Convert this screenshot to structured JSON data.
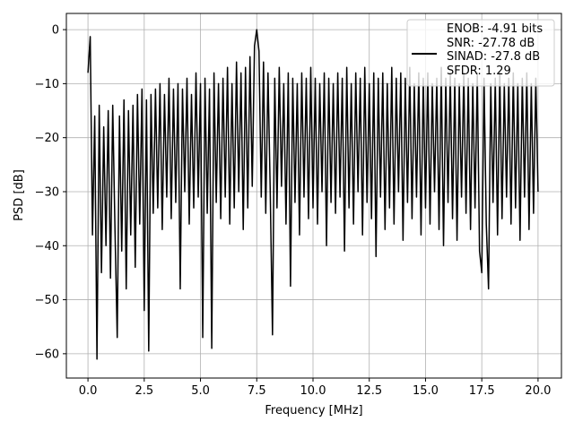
{
  "chart_data": {
    "type": "line",
    "xlabel": "Frequency [MHz]",
    "ylabel": "PSD [dB]",
    "xlim": [
      -0.96,
      21.04
    ],
    "ylim": [
      -64.5,
      3.0
    ],
    "xticks": [
      {
        "value": 0,
        "label": "0.0"
      },
      {
        "value": 2.5,
        "label": "2.5"
      },
      {
        "value": 5,
        "label": "5.0"
      },
      {
        "value": 7.5,
        "label": "7.5"
      },
      {
        "value": 10,
        "label": "10.0"
      },
      {
        "value": 12.5,
        "label": "12.5"
      },
      {
        "value": 15,
        "label": "15.0"
      },
      {
        "value": 17.5,
        "label": "17.5"
      },
      {
        "value": 20,
        "label": "20.0"
      }
    ],
    "yticks": [
      {
        "value": -60,
        "label": "−60"
      },
      {
        "value": -50,
        "label": "−50"
      },
      {
        "value": -40,
        "label": "−40"
      },
      {
        "value": -30,
        "label": "−30"
      },
      {
        "value": -20,
        "label": "−20"
      },
      {
        "value": -10,
        "label": "−10"
      },
      0
    ],
    "grid": true,
    "legend": "upper right",
    "x": [
      0,
      0.1,
      0.2,
      0.3,
      0.4,
      0.5,
      0.6,
      0.7,
      0.8,
      0.9,
      1,
      1.1,
      1.2,
      1.3,
      1.4,
      1.5,
      1.6,
      1.7,
      1.8,
      1.9,
      2,
      2.1,
      2.2,
      2.3,
      2.4,
      2.5,
      2.6,
      2.7,
      2.8,
      2.9,
      3,
      3.1,
      3.2,
      3.3,
      3.4,
      3.5,
      3.6,
      3.7,
      3.8,
      3.9,
      4,
      4.1,
      4.2,
      4.3,
      4.4,
      4.5,
      4.6,
      4.7,
      4.8,
      4.9,
      5,
      5.1,
      5.2,
      5.3,
      5.4,
      5.5,
      5.6,
      5.7,
      5.8,
      5.9,
      6,
      6.1,
      6.2,
      6.3,
      6.4,
      6.5,
      6.6,
      6.7,
      6.8,
      6.9,
      7,
      7.1,
      7.2,
      7.3,
      7.4,
      7.5,
      7.6,
      7.7,
      7.8,
      7.9,
      8,
      8.1,
      8.2,
      8.3,
      8.4,
      8.5,
      8.6,
      8.7,
      8.8,
      8.9,
      9,
      9.1,
      9.2,
      9.3,
      9.4,
      9.5,
      9.6,
      9.7,
      9.8,
      9.9,
      10,
      10.1,
      10.2,
      10.3,
      10.4,
      10.5,
      10.6,
      10.7,
      10.8,
      10.9,
      11,
      11.1,
      11.2,
      11.3,
      11.4,
      11.5,
      11.6,
      11.7,
      11.8,
      11.9,
      12,
      12.1,
      12.2,
      12.3,
      12.4,
      12.5,
      12.6,
      12.7,
      12.8,
      12.9,
      13,
      13.1,
      13.2,
      13.3,
      13.4,
      13.5,
      13.6,
      13.7,
      13.8,
      13.9,
      14,
      14.1,
      14.2,
      14.3,
      14.4,
      14.5,
      14.6,
      14.7,
      14.8,
      14.9,
      15,
      15.1,
      15.2,
      15.3,
      15.4,
      15.5,
      15.6,
      15.7,
      15.8,
      15.9,
      16,
      16.1,
      16.2,
      16.3,
      16.4,
      16.5,
      16.6,
      16.7,
      16.8,
      16.9,
      17,
      17.1,
      17.2,
      17.3,
      17.4,
      17.5,
      17.6,
      17.7,
      17.8,
      17.9,
      18,
      18.1,
      18.2,
      18.3,
      18.4,
      18.5,
      18.6,
      18.7,
      18.8,
      18.9,
      19,
      19.1,
      19.2,
      19.3,
      19.4,
      19.5,
      19.6,
      19.7,
      19.8,
      19.9,
      20
    ],
    "series": [
      {
        "name": "ENOB: -4.91 bits\nSNR: -27.78 dB\nSINAD: -27.8 dB\nSFDR: 1.29",
        "color": "#000000",
        "values": [
          -8,
          -1.3,
          -38,
          -16,
          -61,
          -14,
          -45,
          -18,
          -40,
          -15,
          -46,
          -14,
          -37,
          -57,
          -16,
          -41,
          -13,
          -48,
          -15,
          -38,
          -14,
          -44,
          -12,
          -36,
          -11,
          -52,
          -13,
          -59.5,
          -12,
          -34,
          -11,
          -33,
          -10,
          -37,
          -12,
          -31,
          -9,
          -35,
          -11,
          -32,
          -10,
          -48,
          -11,
          -30,
          -9,
          -36,
          -12,
          -33,
          -8,
          -31,
          -10,
          -57,
          -9,
          -34,
          -11,
          -59,
          -8,
          -32,
          -10,
          -35,
          -9,
          -31,
          -7,
          -36,
          -10,
          -33,
          -6,
          -30,
          -8,
          -37,
          -7,
          -33,
          -5,
          -29,
          -3,
          0,
          -4,
          -31,
          -6,
          -34,
          -8,
          -30,
          -56.5,
          -9,
          -33,
          -7,
          -29,
          -10,
          -36,
          -8,
          -47.5,
          -9,
          -32,
          -10,
          -38,
          -8,
          -31,
          -9,
          -35,
          -7,
          -33,
          -9,
          -36,
          -10,
          -30,
          -8,
          -40,
          -9,
          -32,
          -10,
          -34,
          -8,
          -31,
          -9,
          -41,
          -7,
          -33,
          -10,
          -36,
          -8,
          -30,
          -9,
          -38,
          -7,
          -32,
          -10,
          -35,
          -8,
          -42,
          -9,
          -31,
          -8,
          -37,
          -10,
          -33,
          -7,
          -36,
          -9,
          -30,
          -8,
          -39,
          -9,
          -32,
          -7,
          -35,
          -10,
          -31,
          -8,
          -38,
          -9,
          -33,
          -8,
          -36,
          -10,
          -30,
          -9,
          -37,
          -7,
          -40,
          -9,
          -32,
          -8,
          -35,
          -9,
          -39,
          -10,
          -31,
          -8,
          -34,
          -9,
          -37,
          -10,
          -33,
          -8,
          -41,
          -45,
          -9,
          -36,
          -48,
          -10,
          -32,
          -9,
          -38,
          -8,
          -35,
          -10,
          -31,
          -9,
          -36,
          -8,
          -33,
          -10,
          -39,
          -9,
          -31,
          -8,
          -37,
          -10,
          -34,
          -9,
          -30
        ]
      }
    ]
  }
}
